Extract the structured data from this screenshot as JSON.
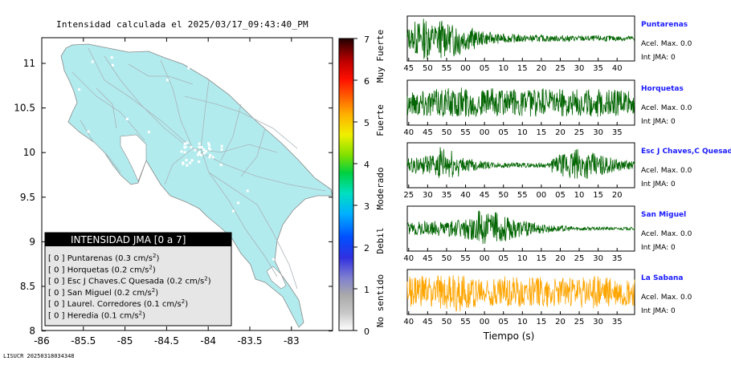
{
  "title": "Intensidad calculada el 2025/03/17_09:43:40_PM",
  "stamp": "LISUCR 20250318034348",
  "map": {
    "x_ticks": [
      "-86",
      "-85.5",
      "-85",
      "-84.5",
      "-84",
      "-83.5",
      "-83"
    ],
    "y_ticks": [
      "11",
      "10.5",
      "10",
      "9.5",
      "9",
      "8.5",
      "8"
    ],
    "land_color": "#b2ebee",
    "legend": {
      "title": "INTENSIDAD JMA [0 a 7]",
      "items": [
        {
          "value": "[ 0 ]",
          "station": "Puntarenas",
          "pga": "(0.3 cm/s",
          "unit_sup": "2",
          "close": ")"
        },
        {
          "value": "[ 0 ]",
          "station": "Horquetas",
          "pga": "(0.2 cm/s",
          "unit_sup": "2",
          "close": ")"
        },
        {
          "value": "[ 0 ]",
          "station": "Esc J Chaves.C Quesada",
          "pga": "(0.2 cm/s",
          "unit_sup": "2",
          "close": ")"
        },
        {
          "value": "[ 0 ]",
          "station": "San Miguel",
          "pga": "(0.2 cm/s",
          "unit_sup": "2",
          "close": ")"
        },
        {
          "value": "[ 0 ]",
          "station": "Laurel. Corredores",
          "pga": "(0.1 cm/s",
          "unit_sup": "2",
          "close": ")"
        },
        {
          "value": "[ 0 ]",
          "station": "Heredia",
          "pga": "(0.1 cm/s",
          "unit_sup": "2",
          "close": ")"
        }
      ]
    }
  },
  "colorbar": {
    "ticks": [
      "7",
      "6",
      "5",
      "4",
      "3",
      "2",
      "1",
      "0"
    ],
    "categories": [
      "Muy Fuerte",
      "Fuerte",
      "Moderado",
      "Debil",
      "No sentido"
    ]
  },
  "chart_data": [
    {
      "type": "line",
      "name": "Puntarenas",
      "color": "#006400",
      "x_ticks": [
        "45",
        "50",
        "55",
        "00",
        "05",
        "10",
        "15",
        "20",
        "25",
        "30",
        "35",
        "40"
      ],
      "acel_label": "Acel. Max. 0.0",
      "int_label": "Int JMA: 0",
      "envelope": [
        0.55,
        0.85,
        1.0,
        0.75,
        0.95,
        0.7,
        0.9,
        0.6,
        0.55,
        0.35,
        0.3,
        0.25,
        0.22,
        0.2,
        0.2,
        0.18,
        0.17,
        0.16,
        0.16,
        0.15,
        0.15,
        0.15,
        0.14,
        0.14,
        0.14,
        0.14,
        0.14,
        0.13,
        0.13,
        0.13
      ]
    },
    {
      "type": "line",
      "name": "Horquetas",
      "color": "#006400",
      "x_ticks": [
        "40",
        "45",
        "50",
        "55",
        "00",
        "05",
        "10",
        "15",
        "20",
        "25",
        "30",
        "35"
      ],
      "acel_label": "Acel. Max. 0.0",
      "int_label": "Int JMA: 0",
      "envelope": [
        0.6,
        0.65,
        0.7,
        0.65,
        0.72,
        0.7,
        0.66,
        0.8,
        0.7,
        0.68,
        0.65,
        0.7,
        0.66,
        0.62,
        0.7,
        0.65,
        0.68,
        0.7,
        0.66,
        0.6,
        0.68,
        0.65,
        0.7,
        0.66,
        0.64,
        0.68,
        0.62,
        0.66,
        0.64,
        0.6
      ]
    },
    {
      "type": "line",
      "name": "Esc J Chaves,C Quesad",
      "color": "#006400",
      "x_ticks": [
        "25",
        "30",
        "35",
        "40",
        "45",
        "50",
        "55",
        "00",
        "05",
        "10",
        "15",
        "20"
      ],
      "acel_label": "Acel. Max. 0.0",
      "int_label": "Int JMA: 0",
      "envelope": [
        0.35,
        0.4,
        0.45,
        0.5,
        0.9,
        0.75,
        0.55,
        0.35,
        0.3,
        0.22,
        0.18,
        0.15,
        0.13,
        0.12,
        0.12,
        0.11,
        0.11,
        0.11,
        0.11,
        0.4,
        0.55,
        0.7,
        0.8,
        0.65,
        0.6,
        0.5,
        0.4,
        0.3,
        0.25,
        0.2
      ]
    },
    {
      "type": "line",
      "name": "San Miguel",
      "color": "#006400",
      "x_ticks": [
        "40",
        "45",
        "50",
        "55",
        "00",
        "05",
        "10",
        "15",
        "20",
        "25",
        "30",
        "35"
      ],
      "acel_label": "Acel. Max. 0.0",
      "int_label": "Int JMA: 0",
      "envelope": [
        0.3,
        0.35,
        0.4,
        0.38,
        0.36,
        0.4,
        0.45,
        0.5,
        0.55,
        0.9,
        0.75,
        0.8,
        0.65,
        0.55,
        0.45,
        0.38,
        0.3,
        0.25,
        0.2,
        0.16,
        0.14,
        0.12,
        0.1,
        0.09,
        0.08,
        0.08,
        0.07,
        0.07,
        0.07,
        0.07
      ]
    },
    {
      "type": "line",
      "name": "La Sabana",
      "color": "#ffa500",
      "x_ticks": [
        "40",
        "45",
        "50",
        "55",
        "00",
        "05",
        "10",
        "15",
        "20",
        "25",
        "30",
        "35"
      ],
      "xlabel": "Tiempo (s)",
      "acel_label": "Acel. Max. 0.0",
      "int_label": "Int JMA: 0",
      "envelope": [
        0.75,
        0.8,
        0.78,
        0.72,
        0.8,
        0.85,
        0.95,
        0.8,
        0.78,
        0.75,
        0.72,
        0.7,
        0.78,
        0.74,
        0.72,
        0.7,
        0.7,
        0.72,
        0.75,
        0.7,
        0.68,
        0.72,
        0.7,
        0.75,
        0.8,
        0.85,
        0.75,
        0.72,
        0.7,
        0.72
      ]
    }
  ]
}
